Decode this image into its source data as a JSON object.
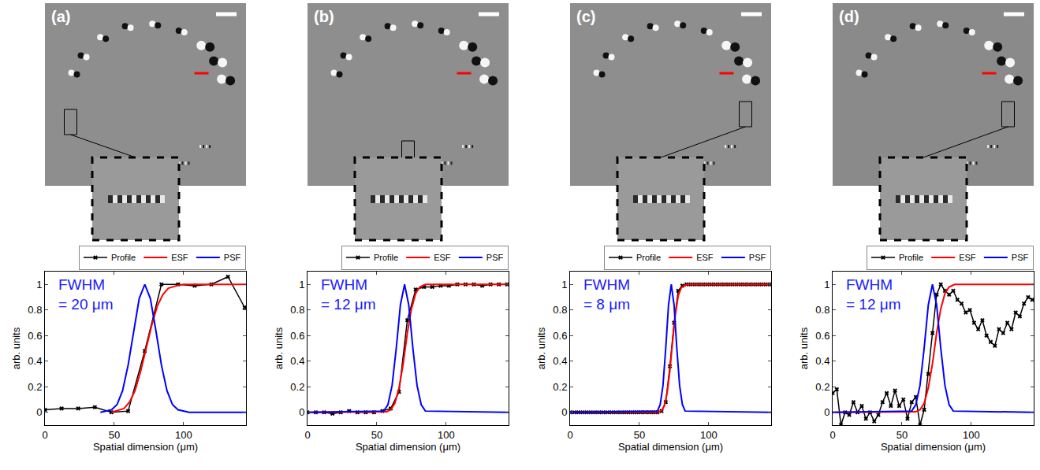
{
  "chart_data": [
    {
      "type": "line",
      "label": "(a)",
      "annotation": [
        "FWHM",
        "= 20 μm"
      ],
      "x_label": "Spatial dimension (μm)",
      "y_label": "arb. units",
      "xlim": [
        0,
        145
      ],
      "ylim": [
        -0.1,
        1.1
      ],
      "xticks": [
        0,
        50,
        100
      ],
      "yticks": [
        0,
        0.2,
        0.4,
        0.6,
        0.8,
        1
      ],
      "legend": "top",
      "series": [
        {
          "name": "Profile",
          "color": "#000000",
          "marker": "x",
          "line_style": "solid",
          "x": [
            0,
            12,
            24,
            36,
            48,
            60,
            72,
            84,
            96,
            108,
            120,
            132,
            144
          ],
          "values": [
            0.02,
            0.03,
            0.03,
            0.04,
            0,
            0.01,
            0.48,
            1,
            1,
            0.99,
            1,
            1.06,
            0.82
          ]
        },
        {
          "name": "ESF",
          "color": "#ff0000",
          "line_style": "solid",
          "x": [
            48,
            57,
            61,
            65,
            69,
            73,
            77,
            81,
            85,
            89,
            95,
            100,
            145
          ],
          "values": [
            0,
            0.03,
            0.08,
            0.17,
            0.32,
            0.5,
            0.68,
            0.83,
            0.92,
            0.97,
            0.99,
            1,
            1
          ]
        },
        {
          "name": "PSF",
          "color": "#0000ff",
          "line_style": "solid",
          "x": [
            40,
            48,
            52,
            56,
            60,
            64,
            68,
            72,
            76,
            80,
            84,
            88,
            92,
            96,
            104,
            145
          ],
          "values": [
            0,
            0.02,
            0.06,
            0.17,
            0.37,
            0.64,
            0.89,
            1,
            0.89,
            0.64,
            0.37,
            0.17,
            0.06,
            0.02,
            0,
            0
          ]
        }
      ]
    },
    {
      "type": "line",
      "label": "(b)",
      "annotation": [
        "FWHM",
        "= 12 μm"
      ],
      "x_label": "Spatial dimension (μm)",
      "y_label": "arb. units",
      "xlim": [
        0,
        145
      ],
      "ylim": [
        -0.1,
        1.1
      ],
      "xticks": [
        0,
        50,
        100
      ],
      "yticks": [
        0,
        0.2,
        0.4,
        0.6,
        0.8,
        1
      ],
      "legend": "top",
      "series": [
        {
          "name": "Profile",
          "color": "#000000",
          "marker": "x",
          "line_style": "solid",
          "x": [
            0,
            6,
            12,
            18,
            24,
            30,
            36,
            42,
            48,
            54,
            60,
            66,
            72,
            78,
            84,
            90,
            96,
            102,
            108,
            114,
            120,
            126,
            132,
            138,
            144
          ],
          "values": [
            0,
            0,
            0,
            -0.01,
            0,
            0.01,
            0,
            0,
            0,
            0.01,
            0.03,
            0.16,
            0.72,
            0.96,
            0.98,
            0.98,
            0.99,
            0.99,
            1,
            1,
            1,
            0.99,
            1,
            1,
            1
          ]
        },
        {
          "name": "ESF",
          "color": "#ff0000",
          "line_style": "solid",
          "x": [
            0,
            57,
            60,
            63,
            66,
            69,
            72,
            75,
            78,
            81,
            85,
            145
          ],
          "values": [
            0,
            0.004,
            0.02,
            0.07,
            0.19,
            0.38,
            0.62,
            0.81,
            0.93,
            0.98,
            1,
            1
          ]
        },
        {
          "name": "PSF",
          "color": "#0000ff",
          "line_style": "solid",
          "x": [
            0,
            55,
            58,
            61,
            64,
            67,
            70,
            73,
            76,
            79,
            82,
            85,
            145
          ],
          "values": [
            0,
            0.01,
            0.06,
            0.21,
            0.5,
            0.84,
            1,
            0.84,
            0.5,
            0.21,
            0.06,
            0.01,
            0
          ]
        }
      ]
    },
    {
      "type": "line",
      "label": "(c)",
      "annotation": [
        "FWHM",
        "= 8 μm"
      ],
      "x_label": "Spatial dimension (μm)",
      "y_label": "arb. units",
      "xlim": [
        0,
        145
      ],
      "ylim": [
        -0.1,
        1.1
      ],
      "xticks": [
        0,
        50,
        100
      ],
      "yticks": [
        0,
        0.2,
        0.4,
        0.6,
        0.8,
        1
      ],
      "legend": "top",
      "series": [
        {
          "name": "Profile",
          "color": "#000000",
          "marker": "x",
          "line_style": "solid",
          "x": [
            0,
            3,
            6,
            9,
            12,
            15,
            18,
            21,
            24,
            27,
            30,
            33,
            36,
            39,
            42,
            45,
            48,
            51,
            54,
            57,
            60,
            63,
            66,
            69,
            72,
            75,
            78,
            81,
            84,
            87,
            90,
            93,
            96,
            99,
            102,
            105,
            108,
            111,
            114,
            117,
            120,
            123,
            126,
            129,
            132,
            135,
            138,
            141,
            144
          ],
          "values": [
            0,
            0,
            0,
            0,
            0,
            0,
            0,
            0,
            0,
            0,
            0,
            0,
            0,
            0,
            0,
            0,
            0,
            0,
            0,
            0,
            0,
            0,
            0.01,
            0.08,
            0.36,
            0.7,
            0.95,
            0.99,
            1,
            1,
            1,
            1,
            1,
            1,
            1,
            1,
            1,
            1,
            1,
            1,
            1,
            1,
            1,
            1,
            1,
            1,
            1,
            1,
            1
          ]
        },
        {
          "name": "ESF",
          "color": "#ff0000",
          "line_style": "solid",
          "x": [
            0,
            64,
            66,
            68,
            70,
            72,
            74,
            76,
            78,
            80,
            82,
            85,
            145
          ],
          "values": [
            0,
            0.003,
            0.014,
            0.05,
            0.15,
            0.33,
            0.56,
            0.77,
            0.91,
            0.97,
            0.99,
            1,
            1
          ]
        },
        {
          "name": "PSF",
          "color": "#0000ff",
          "line_style": "solid",
          "x": [
            0,
            63,
            65,
            67,
            69,
            71,
            73,
            75,
            77,
            79,
            81,
            83,
            145
          ],
          "values": [
            0,
            0.01,
            0.06,
            0.21,
            0.5,
            0.84,
            1,
            0.84,
            0.5,
            0.21,
            0.06,
            0.01,
            0
          ]
        }
      ]
    },
    {
      "type": "line",
      "label": "(d)",
      "annotation": [
        "FWHM",
        "= 12 μm"
      ],
      "x_label": "Spatial dimension (μm)",
      "y_label": "arb. units",
      "xlim": [
        0,
        145
      ],
      "ylim": [
        -0.1,
        1.1
      ],
      "xticks": [
        0,
        50,
        100
      ],
      "yticks": [
        0,
        0.2,
        0.4,
        0.6,
        0.8,
        1
      ],
      "legend": "top",
      "series": [
        {
          "name": "Profile",
          "color": "#000000",
          "marker": "x",
          "line_style": "solid",
          "x": [
            0,
            3,
            6,
            9,
            12,
            15,
            18,
            21,
            24,
            27,
            30,
            33,
            36,
            39,
            42,
            45,
            48,
            51,
            54,
            57,
            60,
            63,
            66,
            69,
            72,
            75,
            78,
            81,
            84,
            87,
            90,
            93,
            96,
            99,
            102,
            105,
            108,
            111,
            114,
            117,
            120,
            123,
            126,
            129,
            132,
            135,
            138,
            141,
            144
          ],
          "values": [
            0.15,
            0.18,
            -0.1,
            0,
            -0.02,
            0.08,
            0,
            0.05,
            -0.05,
            0,
            -0.07,
            -0.02,
            0.08,
            0.15,
            0.05,
            0.17,
            0.05,
            0.1,
            -0.05,
            0.08,
            0.12,
            -0.1,
            0.02,
            0.3,
            0.62,
            0.92,
            1,
            0.95,
            0.92,
            0.95,
            0.88,
            0.85,
            0.78,
            0.8,
            0.7,
            0.65,
            0.72,
            0.6,
            0.55,
            0.52,
            0.65,
            0.62,
            0.7,
            0.65,
            0.78,
            0.75,
            0.85,
            0.9,
            0.88
          ]
        },
        {
          "name": "ESF",
          "color": "#ff0000",
          "line_style": "solid",
          "x": [
            0,
            60,
            63,
            66,
            69,
            72,
            75,
            78,
            81,
            84,
            88,
            145
          ],
          "values": [
            0,
            0.004,
            0.02,
            0.07,
            0.19,
            0.38,
            0.62,
            0.81,
            0.93,
            0.98,
            1,
            1
          ]
        },
        {
          "name": "PSF",
          "color": "#0000ff",
          "line_style": "solid",
          "x": [
            0,
            57,
            60,
            63,
            66,
            69,
            72,
            75,
            78,
            81,
            84,
            87,
            145
          ],
          "values": [
            0,
            0.01,
            0.06,
            0.21,
            0.5,
            0.84,
            1,
            0.84,
            0.5,
            0.21,
            0.06,
            0.01,
            0
          ]
        }
      ]
    }
  ]
}
